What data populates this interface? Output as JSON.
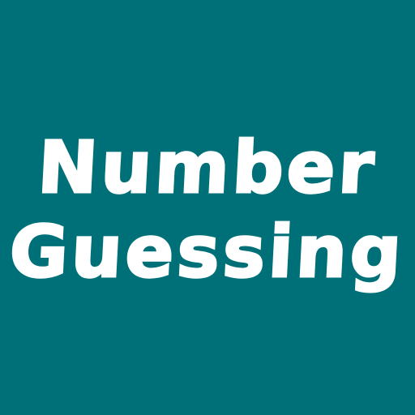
{
  "app_icon": {
    "title_line_1": "Number",
    "title_line_2": "Guessing"
  },
  "colors": {
    "background": "#007078",
    "text": "#ffffff"
  }
}
